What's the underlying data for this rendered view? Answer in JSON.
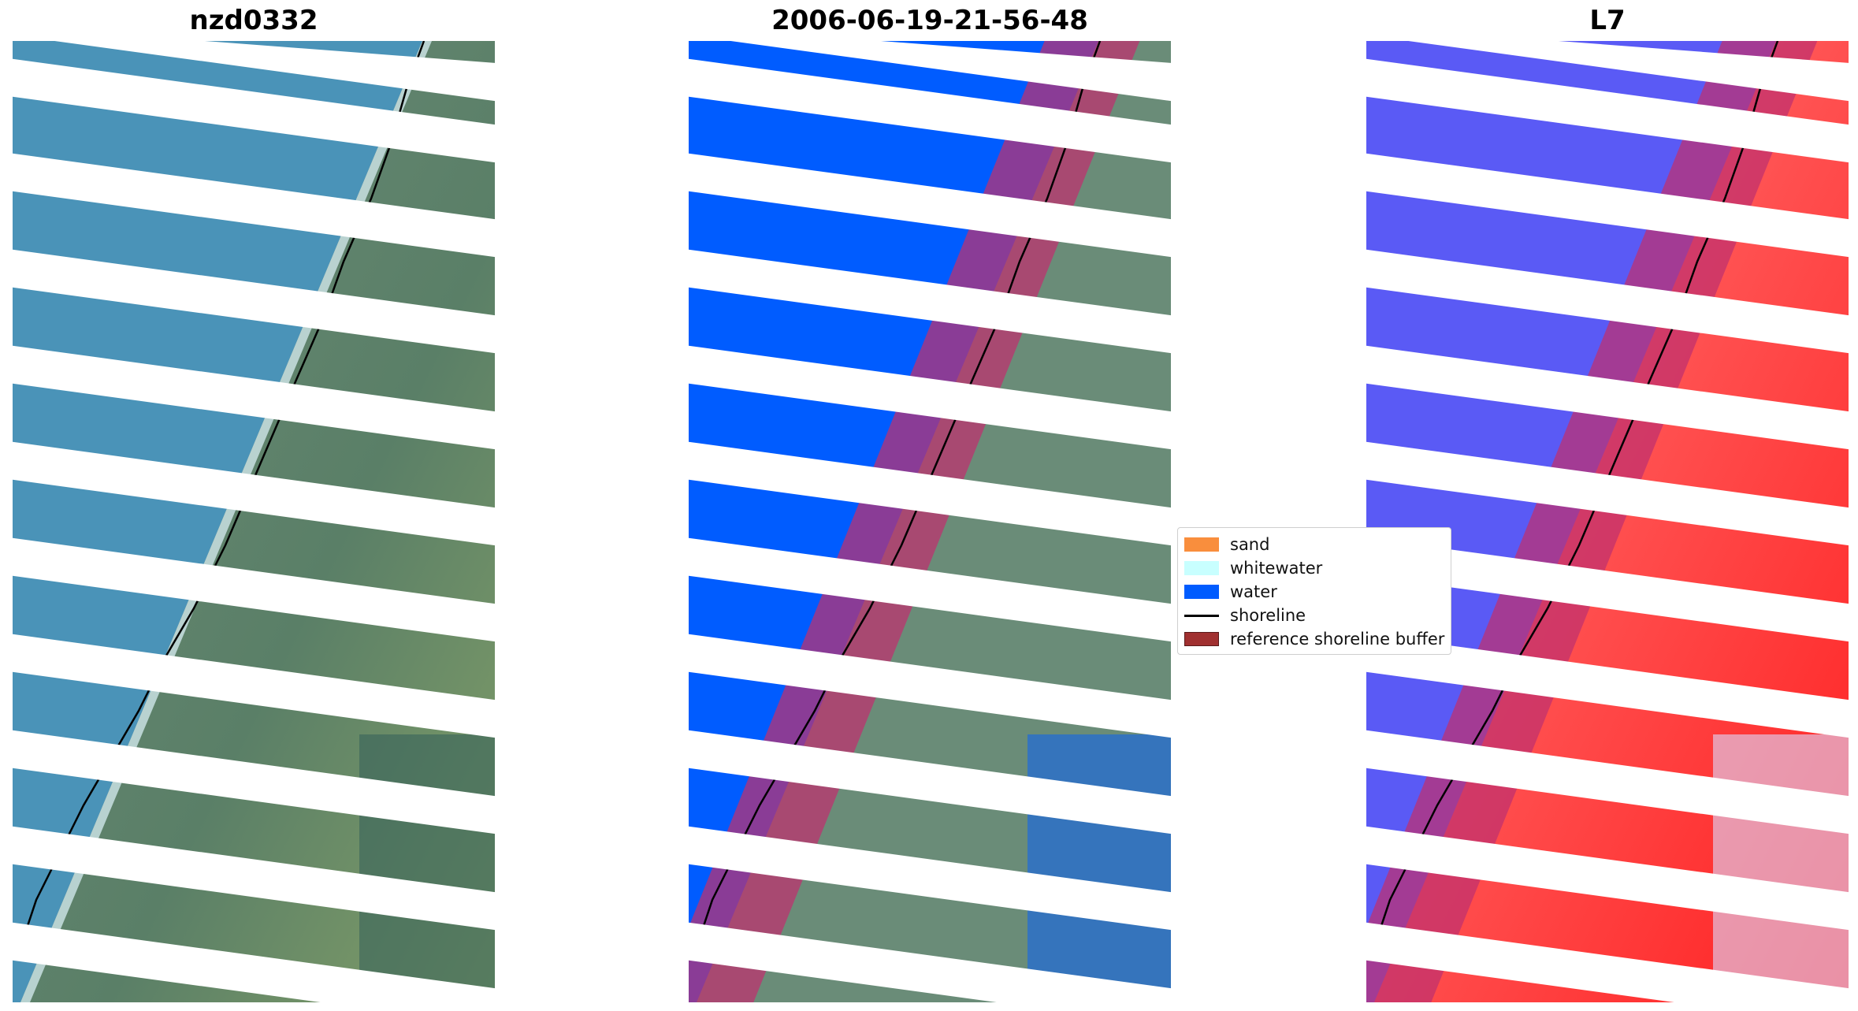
{
  "panels": [
    {
      "title": "nzd0332"
    },
    {
      "title": "2006-06-19-21-56-48"
    },
    {
      "title": "L7"
    }
  ],
  "legend": {
    "items": [
      {
        "label": "sand",
        "color": "#f98e3d",
        "kind": "patch"
      },
      {
        "label": "whitewater",
        "color": "#c8ffff",
        "kind": "patch"
      },
      {
        "label": "water",
        "color": "#005cff",
        "kind": "patch"
      },
      {
        "label": "shoreline",
        "color": "#000000",
        "kind": "line"
      },
      {
        "label": "reference shoreline buffer",
        "color": "#a03030",
        "kind": "outlined-patch"
      }
    ]
  },
  "colors": {
    "sea_rgb": "#4a93b8",
    "land_rgb": "#5f8a70",
    "water_class": "#005cff",
    "buffer_overlay": "#c0306f",
    "index_water": "#4a4aff",
    "index_land": "#ff3030"
  }
}
